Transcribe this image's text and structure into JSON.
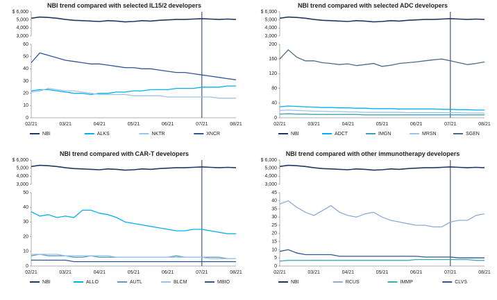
{
  "chart_data": [
    {
      "type": "line",
      "title": "NBI trend compared with selected",
      "title_highlight": "IL15/2",
      "title_end": "developers",
      "categories": [
        "02/21",
        null,
        null,
        null,
        "03/21",
        null,
        null,
        null,
        "04/21",
        null,
        null,
        null,
        "05/21",
        null,
        null,
        null,
        "06/21",
        null,
        null,
        null,
        "07/21",
        null,
        null,
        null,
        "08/21"
      ],
      "vline_at": "07/21",
      "upper_ylim": [
        3000,
        6000
      ],
      "upper_yticks": [
        {
          "value": 6000,
          "label": "$ 6,000"
        },
        {
          "value": 5000,
          "label": "5,000"
        },
        {
          "value": 4000,
          "label": "4,000"
        },
        {
          "value": 3000,
          "label": "3,000"
        }
      ],
      "ylim": [
        0,
        60
      ],
      "yticks": [
        0,
        10,
        20,
        30,
        40,
        50,
        60
      ],
      "series": [
        {
          "name": "NBI",
          "color": "#1f3864",
          "axis": "upper",
          "values": [
            5200,
            5350,
            5300,
            5200,
            5050,
            4950,
            4900,
            4850,
            4800,
            4900,
            4850,
            4750,
            4800,
            4900,
            4850,
            4950,
            5000,
            5050,
            5050,
            5100,
            5150,
            5100,
            5050,
            5100,
            5050
          ]
        },
        {
          "name": "ALKS",
          "color": "#00b0f0",
          "values": [
            22,
            23,
            23,
            22,
            21,
            20,
            20,
            19,
            20,
            20,
            21,
            21,
            22,
            22,
            23,
            23,
            23,
            24,
            24,
            24,
            25,
            25,
            25,
            26,
            26
          ]
        },
        {
          "name": "NKTR",
          "color": "#9dc3e6",
          "values": [
            21,
            22,
            24,
            23,
            22,
            22,
            21,
            20,
            19,
            19,
            19,
            19,
            18,
            18,
            18,
            18,
            17,
            17,
            17,
            17,
            17,
            17,
            16,
            16,
            16
          ]
        },
        {
          "name": "XNCR",
          "color": "#2f5597",
          "values": [
            45,
            53,
            51,
            49,
            47,
            46,
            45,
            44,
            44,
            43,
            42,
            41,
            41,
            40,
            40,
            39,
            38,
            37,
            37,
            36,
            35,
            34,
            33,
            32,
            31
          ]
        }
      ]
    },
    {
      "type": "line",
      "title": "NBI trend compared with selected",
      "title_highlight": "ADC",
      "title_end": "developers",
      "categories": [
        "02/21",
        null,
        null,
        null,
        "03/21",
        null,
        null,
        null,
        "04/21",
        null,
        null,
        null,
        "05/21",
        null,
        null,
        null,
        "06/21",
        null,
        null,
        null,
        "07/21",
        null,
        null,
        null,
        "08/21"
      ],
      "vline_at": "07/21",
      "upper_ylim": [
        3000,
        6000
      ],
      "upper_yticks": [
        {
          "value": 6000,
          "label": "$ 6,000"
        },
        {
          "value": 5000,
          "label": "5,000"
        },
        {
          "value": 4000,
          "label": "4,000"
        },
        {
          "value": 3000,
          "label": "3,000"
        }
      ],
      "ylim": [
        0,
        200
      ],
      "yticks": [
        0,
        40,
        80,
        120,
        160,
        200
      ],
      "series": [
        {
          "name": "NBI",
          "color": "#1f3864",
          "axis": "upper",
          "values": [
            5200,
            5350,
            5300,
            5200,
            5050,
            4950,
            4900,
            4850,
            4800,
            4900,
            4850,
            4750,
            4800,
            4900,
            4850,
            4950,
            5000,
            5050,
            5050,
            5100,
            5150,
            5100,
            5050,
            5100,
            5050
          ]
        },
        {
          "name": "ADCT",
          "color": "#00b0f0",
          "values": [
            30,
            32,
            31,
            30,
            29,
            28,
            28,
            27,
            27,
            26,
            26,
            25,
            25,
            25,
            24,
            24,
            24,
            24,
            24,
            23,
            23,
            22,
            22,
            21,
            21
          ]
        },
        {
          "name": "IMGN",
          "color": "#41a0b8",
          "values": [
            10,
            11,
            10,
            10,
            9,
            9,
            9,
            9,
            9,
            9,
            8,
            8,
            8,
            8,
            8,
            8,
            8,
            8,
            8,
            8,
            8,
            8,
            8,
            8,
            8
          ]
        },
        {
          "name": "MRSN",
          "color": "#9dc3e6",
          "values": [
            20,
            21,
            20,
            19,
            18,
            18,
            17,
            17,
            16,
            16,
            15,
            15,
            15,
            15,
            15,
            14,
            14,
            14,
            14,
            14,
            14,
            14,
            13,
            13,
            13
          ]
        },
        {
          "name": "SGEN",
          "color": "#4a6a8a",
          "values": [
            160,
            185,
            165,
            155,
            155,
            150,
            148,
            145,
            147,
            142,
            145,
            148,
            140,
            143,
            148,
            150,
            152,
            155,
            158,
            160,
            155,
            150,
            145,
            148,
            152
          ]
        }
      ]
    },
    {
      "type": "line",
      "title": "NBI trend compared with",
      "title_highlight": "CAR-T",
      "title_end": "developers",
      "categories": [
        "02/21",
        null,
        null,
        null,
        "03/21",
        null,
        null,
        null,
        "04/21",
        null,
        null,
        null,
        "05/21",
        null,
        null,
        null,
        "06/21",
        null,
        null,
        null,
        "07/21",
        null,
        null,
        null,
        "08/21"
      ],
      "vline_at": "07/21",
      "upper_ylim": [
        3000,
        6000
      ],
      "upper_yticks": [
        {
          "value": 6000,
          "label": "$ 6,000"
        },
        {
          "value": 5000,
          "label": "5,000"
        },
        {
          "value": 4000,
          "label": "4,000"
        },
        {
          "value": 3000,
          "label": "3,000"
        }
      ],
      "ylim": [
        0,
        50
      ],
      "yticks": [
        0,
        10,
        20,
        30,
        40,
        50
      ],
      "series": [
        {
          "name": "NBI",
          "color": "#1f3864",
          "axis": "upper",
          "values": [
            5200,
            5350,
            5300,
            5200,
            5050,
            4950,
            4900,
            4850,
            4800,
            4900,
            4850,
            4750,
            4800,
            4900,
            4850,
            4950,
            5000,
            5050,
            5050,
            5100,
            5150,
            5100,
            5050,
            5100,
            5050
          ]
        },
        {
          "name": "ALLO",
          "color": "#00b0f0",
          "values": [
            37,
            34,
            35,
            33,
            34,
            33,
            38,
            38,
            36,
            35,
            33,
            30,
            29,
            28,
            27,
            26,
            25,
            24,
            24,
            25,
            25,
            24,
            23,
            22,
            22
          ]
        },
        {
          "name": "AUTL",
          "color": "#5aa0b8",
          "values": [
            7,
            8,
            7,
            7,
            7,
            6,
            6,
            7,
            6,
            6,
            6,
            6,
            6,
            6,
            6,
            6,
            6,
            7,
            6,
            6,
            6,
            6,
            6,
            5,
            5
          ]
        },
        {
          "name": "BLCM",
          "color": "#9dc3e6",
          "values": [
            8,
            8,
            8,
            8,
            7,
            7,
            7,
            7,
            7,
            7,
            6,
            6,
            6,
            6,
            6,
            6,
            6,
            6,
            6,
            6,
            6,
            5,
            5,
            5,
            5
          ]
        },
        {
          "name": "MBIO",
          "color": "#2f5597",
          "values": [
            4,
            4,
            4,
            4,
            4,
            3,
            3,
            3,
            3,
            3,
            3,
            3,
            3,
            3,
            3,
            3,
            3,
            3,
            3,
            3,
            3,
            3,
            3,
            3,
            3
          ]
        }
      ]
    },
    {
      "type": "line",
      "title": "NBI trend compared with",
      "title_highlight": "other immunotherapy",
      "title_end": "developers",
      "categories": [
        "02/21",
        null,
        null,
        null,
        "03/21",
        null,
        null,
        null,
        "04/21",
        null,
        null,
        null,
        "05/21",
        null,
        null,
        null,
        "06/21",
        null,
        null,
        null,
        "07/21",
        null,
        null,
        null,
        "08/21"
      ],
      "vline_at": "07/21",
      "upper_ylim": [
        3000,
        6000
      ],
      "upper_yticks": [
        {
          "value": 6000,
          "label": "$ 6,000"
        },
        {
          "value": 5000,
          "label": "5,000"
        },
        {
          "value": 4000,
          "label": "4,000"
        },
        {
          "value": 3000,
          "label": "3,000"
        }
      ],
      "ylim": [
        0,
        45
      ],
      "yticks": [
        0,
        5,
        10,
        15,
        20,
        25,
        30,
        35,
        40,
        45
      ],
      "series": [
        {
          "name": "NBI",
          "color": "#1f3864",
          "axis": "upper",
          "values": [
            5200,
            5350,
            5300,
            5200,
            5050,
            4950,
            4900,
            4850,
            4800,
            4900,
            4850,
            4750,
            4800,
            4900,
            4850,
            4950,
            5000,
            5050,
            5050,
            5100,
            5150,
            5100,
            5050,
            5100,
            5050
          ]
        },
        {
          "name": "RCUS",
          "color": "#8eaadb",
          "values": [
            38,
            40,
            36,
            33,
            31,
            34,
            37,
            33,
            31,
            30,
            32,
            33,
            30,
            28,
            27,
            26,
            25,
            25,
            24,
            24,
            27,
            28,
            28,
            31,
            32
          ]
        },
        {
          "name": "IMMP",
          "color": "#3fa7b5",
          "values": [
            3,
            3.5,
            3.5,
            3.5,
            3.5,
            3.5,
            3.5,
            3.5,
            3.5,
            3.5,
            3.5,
            3.5,
            3.5,
            3.5,
            3.5,
            3.5,
            4,
            4,
            4,
            4,
            4,
            4,
            4,
            3.5,
            3.5
          ]
        },
        {
          "name": "CLVS",
          "color": "#2f5597",
          "values": [
            9,
            10,
            8,
            7,
            7,
            7,
            7,
            6,
            6,
            6,
            6,
            6,
            6,
            6,
            6,
            6,
            6,
            5.5,
            5.5,
            5.5,
            5.5,
            5,
            5,
            5,
            5
          ]
        }
      ]
    }
  ]
}
